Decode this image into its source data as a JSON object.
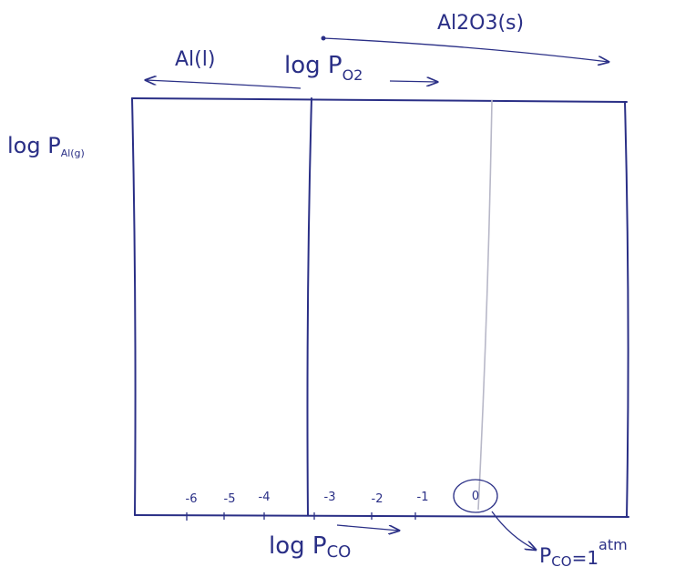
{
  "diagram": {
    "phases": {
      "top": "Al2O3(s)",
      "left": "Al(l)"
    },
    "axes": {
      "top": {
        "prefix": "log P",
        "sub": "O2"
      },
      "left": {
        "prefix": "log P",
        "sub": "Al(g)"
      },
      "bottom": {
        "prefix": "log P",
        "sub": "CO"
      }
    },
    "ticks": [
      "-6",
      "-5",
      "-4",
      "-3",
      "-2",
      "-1",
      "0"
    ],
    "note": {
      "symbol": "P",
      "sub": "CO",
      "rest": "=1",
      "sup": "atm"
    }
  }
}
